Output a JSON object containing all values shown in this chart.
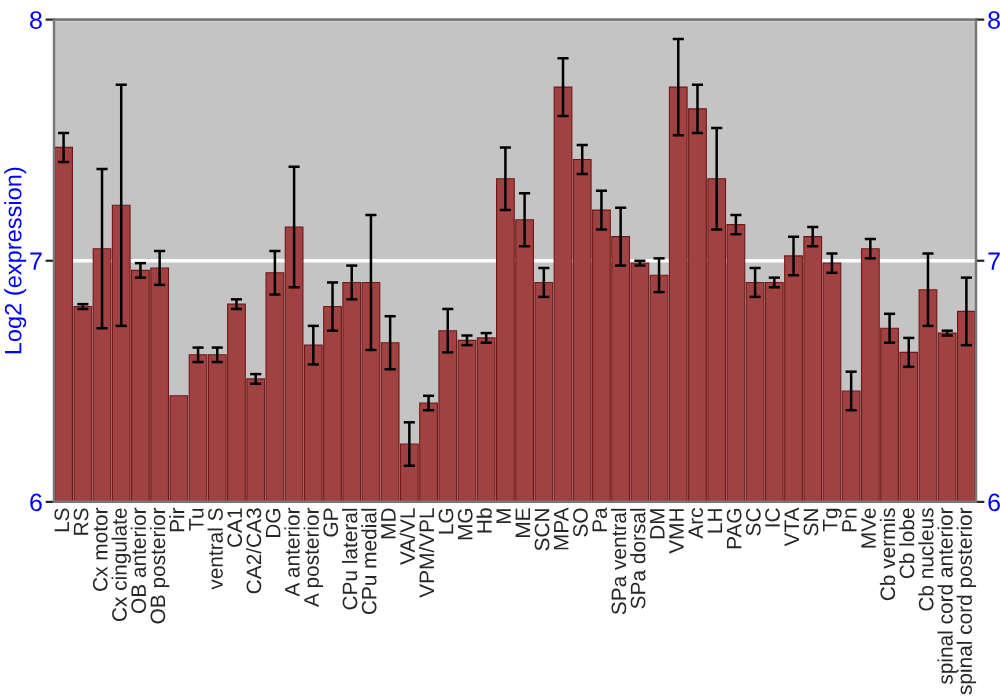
{
  "chart_data": {
    "type": "bar",
    "ylabel": "Log2 (expression)",
    "categories": [
      "LS",
      "RS",
      "Cx motor",
      "Cx cingulate",
      "OB anterior",
      "OB posterior",
      "Pir",
      "Tu",
      "ventral S",
      "CA1",
      "CA2/CA3",
      "DG",
      "A anterior",
      "A posterior",
      "GP",
      "CPu lateral",
      "CPu medial",
      "MD",
      "VA/VL",
      "VPM/VPL",
      "LG",
      "MG",
      "Hb",
      "M",
      "ME",
      "SCN",
      "MPA",
      "SO",
      "Pa",
      "SPa ventral",
      "SPa dorsal",
      "DM",
      "VMH",
      "Arc",
      "LH",
      "PAG",
      "SC",
      "IC",
      "VTA",
      "SN",
      "Tg",
      "Pn",
      "MVe",
      "Cb vermis",
      "Cb lobe",
      "Cb nucleus",
      "spinal cord anterior",
      "spinal cord posterior"
    ],
    "series": [
      {
        "color": "#b03232",
        "values": [
          7.47,
          6.81,
          7.05,
          7.23,
          6.96,
          6.97,
          6.44,
          6.61,
          6.61,
          6.82,
          6.51,
          6.95,
          7.14,
          6.65,
          6.81,
          6.91,
          6.91,
          6.66,
          6.24,
          6.41,
          6.71,
          6.67,
          6.68,
          7.34,
          7.17,
          6.91,
          7.72,
          7.42,
          7.21,
          7.1,
          6.99,
          6.94,
          7.72,
          7.63,
          7.34,
          7.15,
          6.91,
          6.91,
          7.02,
          7.1,
          6.99,
          6.46,
          7.05,
          6.72,
          6.62,
          6.88,
          6.7,
          6.79
        ],
        "errors": [
          0.06,
          0.01,
          0.33,
          0.5,
          0.03,
          0.07,
          null,
          0.03,
          0.03,
          0.02,
          0.02,
          0.09,
          0.25,
          0.08,
          0.1,
          0.07,
          0.28,
          0.11,
          0.09,
          0.03,
          0.09,
          0.02,
          0.02,
          0.13,
          0.11,
          0.06,
          0.12,
          0.06,
          0.08,
          0.12,
          0.01,
          0.07,
          0.2,
          0.1,
          0.21,
          0.04,
          0.06,
          0.02,
          0.08,
          0.04,
          0.04,
          0.08,
          0.04,
          0.06,
          0.06,
          0.15,
          0.01,
          0.14
        ]
      }
    ],
    "ylim": [
      6,
      8
    ],
    "yticks": [
      6,
      7,
      8
    ],
    "y2lim": [
      6,
      8
    ],
    "y2ticks": [
      6,
      7,
      8
    ],
    "grid": "y"
  }
}
